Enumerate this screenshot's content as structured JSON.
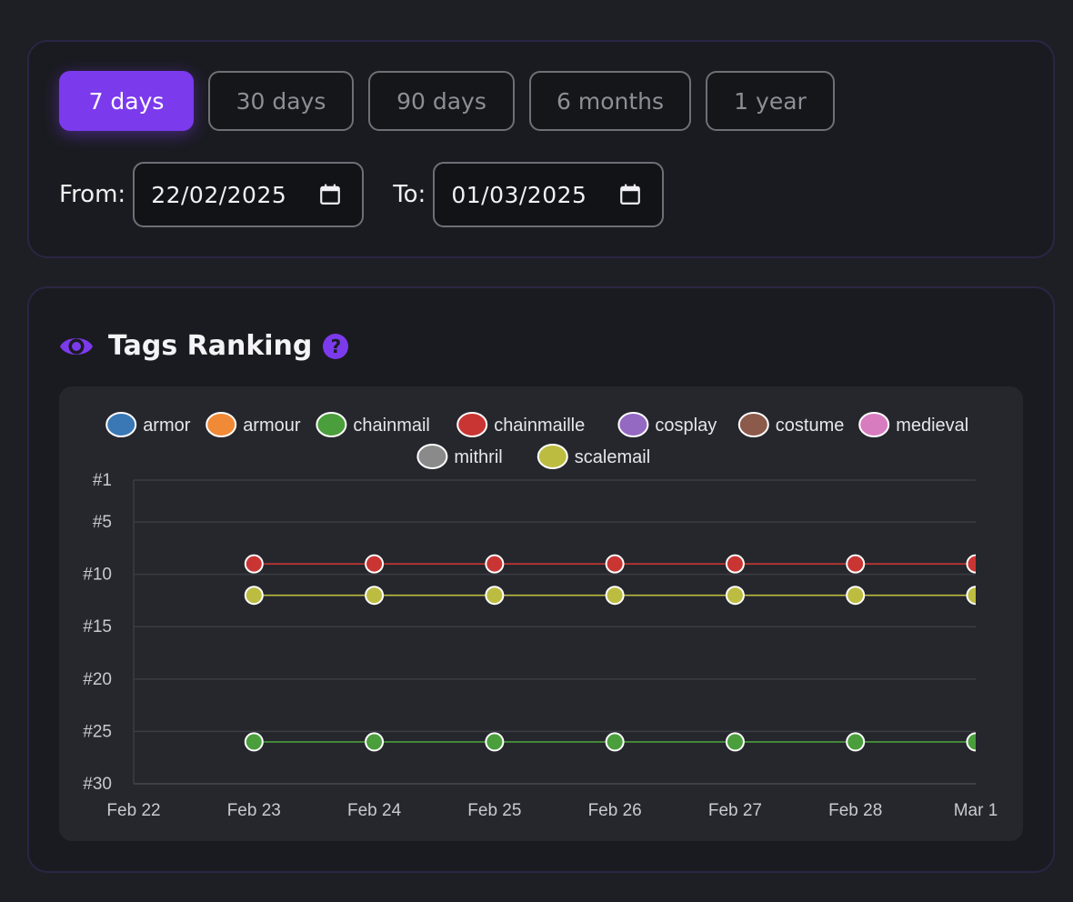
{
  "range": {
    "options": [
      {
        "label": "7 days",
        "active": true
      },
      {
        "label": "30 days",
        "active": false
      },
      {
        "label": "90 days",
        "active": false
      },
      {
        "label": "6 months",
        "active": false
      },
      {
        "label": "1 year",
        "active": false
      }
    ],
    "from_label": "From:",
    "from_value": "22/02/2025",
    "to_label": "To:",
    "to_value": "01/03/2025"
  },
  "ranking": {
    "title": "Tags Ranking",
    "help_glyph": "?"
  },
  "colors": {
    "accent": "#7c3aed",
    "background": "#1e1f24",
    "panel": "#1a1b20",
    "chart_bg": "#26272d"
  },
  "chart_data": {
    "type": "line",
    "title": "",
    "xlabel": "",
    "ylabel": "",
    "x": [
      "Feb 22",
      "Feb 23",
      "Feb 24",
      "Feb 25",
      "Feb 26",
      "Feb 27",
      "Feb 28",
      "Mar 1"
    ],
    "y_ticks": [
      "#1",
      "#5",
      "#10",
      "#15",
      "#20",
      "#25",
      "#30"
    ],
    "y_tick_values": [
      1,
      5,
      10,
      15,
      20,
      25,
      30
    ],
    "ylim": [
      1,
      30
    ],
    "y_inverted": true,
    "grid": true,
    "legend_position": "top-center",
    "series": [
      {
        "name": "armor",
        "color": "#3a78b5",
        "values": [
          null,
          null,
          null,
          null,
          null,
          null,
          null,
          null
        ]
      },
      {
        "name": "armour",
        "color": "#f08a36",
        "values": [
          null,
          null,
          null,
          null,
          null,
          null,
          null,
          null
        ]
      },
      {
        "name": "chainmail",
        "color": "#4a9e3c",
        "values": [
          null,
          26,
          26,
          26,
          26,
          26,
          26,
          26
        ]
      },
      {
        "name": "chainmaille",
        "color": "#c93532",
        "values": [
          null,
          9,
          9,
          9,
          9,
          9,
          9,
          9
        ]
      },
      {
        "name": "cosplay",
        "color": "#9469c2",
        "values": [
          null,
          null,
          null,
          null,
          null,
          null,
          null,
          null
        ]
      },
      {
        "name": "costume",
        "color": "#8c5a4b",
        "values": [
          null,
          null,
          null,
          null,
          null,
          null,
          null,
          null
        ]
      },
      {
        "name": "medieval",
        "color": "#d87cc0",
        "values": [
          null,
          null,
          null,
          null,
          null,
          null,
          null,
          null
        ]
      },
      {
        "name": "mithril",
        "color": "#8a8a8a",
        "values": [
          null,
          null,
          null,
          null,
          null,
          null,
          null,
          null
        ]
      },
      {
        "name": "scalemail",
        "color": "#bcbc40",
        "values": [
          null,
          12,
          12,
          12,
          12,
          12,
          12,
          12
        ]
      }
    ]
  }
}
